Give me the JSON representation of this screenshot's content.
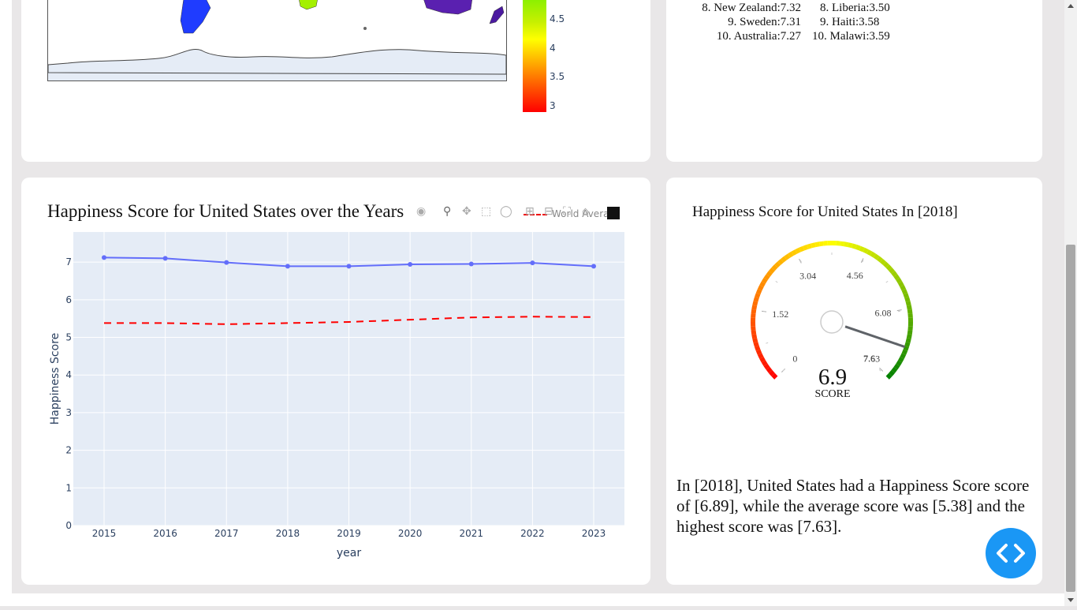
{
  "map": {
    "colorbar_ticks": [
      "4.5",
      "4",
      "3.5",
      "3"
    ]
  },
  "top_list": [
    "8. New Zealand:7.32",
    "9. Sweden:7.31",
    "10. Australia:7.27"
  ],
  "bottom_list": [
    "8. Liberia:3.50",
    "9. Haiti:3.58",
    "10. Malawi:3.59"
  ],
  "line_chart": {
    "title": "Happiness Score for United States over the Years",
    "legend_label": "World Avera",
    "icons": [
      "camera-icon",
      "zoom-icon",
      "pan-icon",
      "box-select-icon",
      "lasso-icon",
      "zoom-in-icon",
      "zoom-out-icon",
      "autoscale-icon",
      "reset-axes-icon",
      "plotly-logo-icon"
    ]
  },
  "chart_data": {
    "type": "line",
    "title": "Happiness Score for United States over the Years",
    "xlabel": "year",
    "ylabel": "Happiness Score",
    "categories": [
      "2015",
      "2016",
      "2017",
      "2018",
      "2019",
      "2020",
      "2021",
      "2022",
      "2023"
    ],
    "ylim": [
      0,
      7.8
    ],
    "yticks": [
      0,
      1,
      2,
      3,
      4,
      5,
      6,
      7
    ],
    "series": [
      {
        "values": [
          7.12,
          7.1,
          6.99,
          6.89,
          6.89,
          6.94,
          6.95,
          6.98,
          6.89
        ],
        "color": "#636efa",
        "style": "solid-markers"
      },
      {
        "name": "World Avera",
        "values": [
          5.38,
          5.38,
          5.35,
          5.38,
          5.41,
          5.47,
          5.53,
          5.55,
          5.54
        ],
        "color": "#ff0000",
        "style": "dashed"
      }
    ],
    "grid": true
  },
  "gauge": {
    "title": "Happiness Score for United States In [2018]",
    "value": "6.9",
    "value_label": "SCORE",
    "ticks": [
      "0",
      "1.52",
      "3.04",
      "4.56",
      "6.08",
      "7.6",
      "7.63"
    ],
    "max": 7.63,
    "needle_value": 6.89
  },
  "summary": {
    "text": "In [2018], United States had a Happiness Score score of [6.89], while the average score was [5.38] and the highest score was [7.63]."
  },
  "fab": {
    "icon": "code-icon"
  }
}
